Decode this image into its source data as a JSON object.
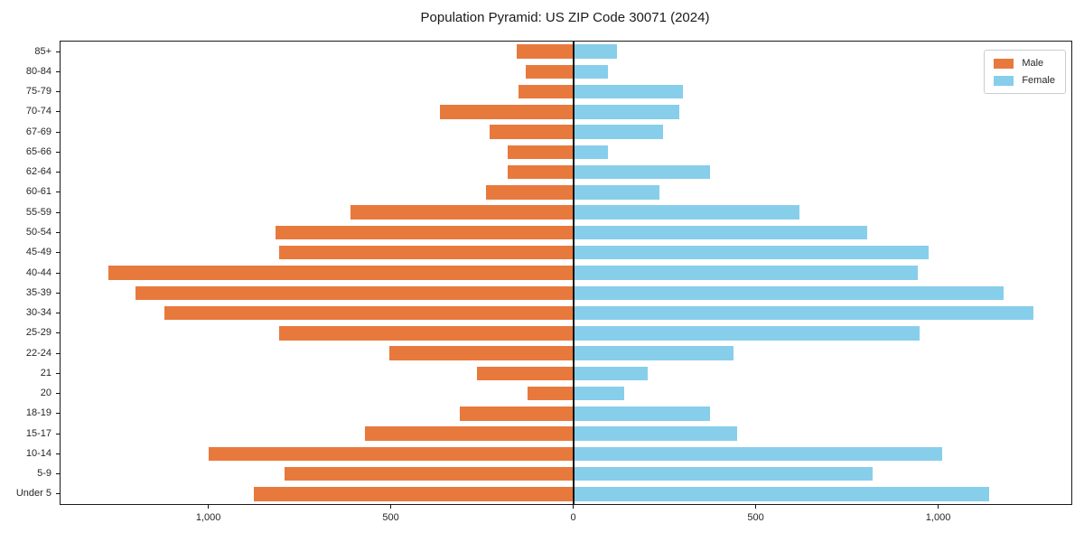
{
  "title": "Population Pyramid: US ZIP Code 30071 (2024)",
  "legend": {
    "male_label": "Male",
    "female_label": "Female",
    "position": "upper right"
  },
  "colors": {
    "male": "#e8793d",
    "female": "#87ceeb",
    "axis": "#111111",
    "background": "#ffffff"
  },
  "chart_data": {
    "type": "bar",
    "subtype": "population-pyramid",
    "orientation": "horizontal",
    "title": "Population Pyramid: US ZIP Code 30071 (2024)",
    "row_order": "top-to-bottom",
    "categories": [
      "85+",
      "80-84",
      "75-79",
      "70-74",
      "67-69",
      "65-66",
      "62-64",
      "60-61",
      "55-59",
      "50-54",
      "45-49",
      "40-44",
      "35-39",
      "30-34",
      "25-29",
      "22-24",
      "21",
      "20",
      "18-19",
      "15-17",
      "10-14",
      "5-9",
      "Under 5"
    ],
    "series": [
      {
        "name": "Male",
        "side": "left",
        "values": [
          155,
          130,
          150,
          365,
          230,
          180,
          180,
          240,
          610,
          815,
          805,
          1275,
          1200,
          1120,
          805,
          505,
          265,
          125,
          310,
          570,
          1000,
          790,
          875
        ]
      },
      {
        "name": "Female",
        "side": "right",
        "values": [
          120,
          95,
          300,
          290,
          245,
          95,
          375,
          235,
          620,
          805,
          975,
          945,
          1180,
          1260,
          950,
          440,
          205,
          140,
          375,
          450,
          1010,
          820,
          1140
        ]
      }
    ],
    "xlim": [
      -1405,
      1365
    ],
    "x_ticks": [
      {
        "value": -1000,
        "label": "1,000"
      },
      {
        "value": -500,
        "label": "500"
      },
      {
        "value": 0,
        "label": "0"
      },
      {
        "value": 500,
        "label": "500"
      },
      {
        "value": 1000,
        "label": "1,000"
      }
    ],
    "xlabel": "",
    "ylabel": "",
    "grid": false,
    "legend_position": "upper right"
  }
}
